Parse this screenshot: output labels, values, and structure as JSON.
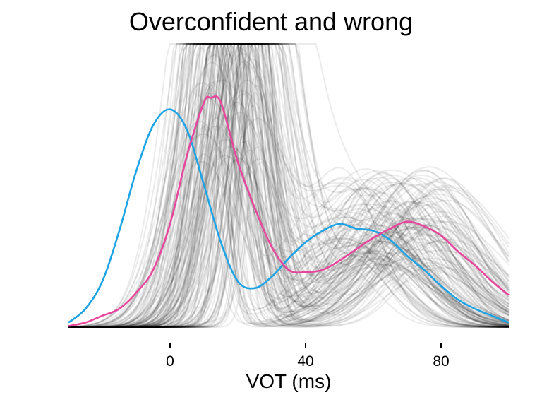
{
  "chart_data": {
    "type": "line",
    "title": "Overconfident and wrong",
    "xlabel": "VOT (ms)",
    "ylabel": "",
    "xlim": [
      -30,
      100
    ],
    "ylim": [
      0,
      1
    ],
    "x_ticks": [
      0,
      40,
      80
    ],
    "x_tick_labels": [
      "0",
      "40",
      "80"
    ],
    "y_axis_visible": false,
    "grid": false,
    "legend": "none",
    "colors": {
      "samples": "#000000",
      "true_distribution": "#1ca3e6",
      "posterior_mean": "#e8469c"
    },
    "series": [
      {
        "role": "true_distribution",
        "x": [
          -30,
          -25,
          -20,
          -15,
          -10,
          -5,
          0,
          5,
          10,
          15,
          20,
          25,
          30,
          35,
          40,
          45,
          50,
          55,
          60,
          65,
          70,
          75,
          80,
          85,
          90,
          95,
          100
        ],
        "y": [
          0.02,
          0.08,
          0.2,
          0.42,
          0.68,
          0.88,
          0.95,
          0.86,
          0.62,
          0.37,
          0.2,
          0.17,
          0.22,
          0.3,
          0.37,
          0.42,
          0.45,
          0.43,
          0.42,
          0.38,
          0.31,
          0.25,
          0.18,
          0.12,
          0.08,
          0.05,
          0.02
        ]
      },
      {
        "role": "posterior_mean",
        "x": [
          -30,
          -25,
          -20,
          -15,
          -10,
          -5,
          0,
          5,
          10,
          12,
          15,
          20,
          25,
          30,
          35,
          40,
          45,
          50,
          55,
          60,
          65,
          70,
          75,
          80,
          85,
          90,
          95,
          100
        ],
        "y": [
          0.005,
          0.02,
          0.05,
          0.08,
          0.15,
          0.25,
          0.45,
          0.75,
          0.98,
          1.0,
          0.98,
          0.72,
          0.52,
          0.35,
          0.25,
          0.24,
          0.25,
          0.29,
          0.34,
          0.39,
          0.43,
          0.46,
          0.44,
          0.4,
          0.33,
          0.27,
          0.2,
          0.14
        ]
      }
    ],
    "sample_curves": {
      "count": 150,
      "opacity": 0.08,
      "first_peak_x_range": [
        8,
        28
      ],
      "second_peak_x_range": [
        50,
        82
      ]
    }
  }
}
